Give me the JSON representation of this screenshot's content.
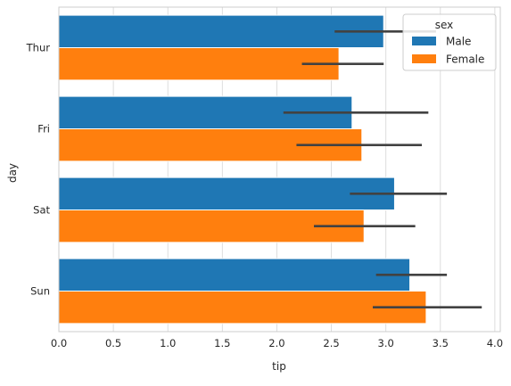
{
  "chart_data": {
    "type": "bar",
    "orientation": "horizontal",
    "categories": [
      "Thur",
      "Fri",
      "Sat",
      "Sun"
    ],
    "series": [
      {
        "name": "Male",
        "color": "#1f77b4",
        "values": [
          2.98,
          2.69,
          3.08,
          3.22
        ],
        "ci_low": [
          2.53,
          2.06,
          2.67,
          2.91
        ],
        "ci_high": [
          3.46,
          3.39,
          3.56,
          3.56
        ]
      },
      {
        "name": "Female",
        "color": "#ff7f0e",
        "values": [
          2.57,
          2.78,
          2.8,
          3.37
        ],
        "ci_low": [
          2.23,
          2.18,
          2.34,
          2.88
        ],
        "ci_high": [
          2.98,
          3.33,
          3.27,
          3.88
        ]
      }
    ],
    "xlabel": "tip",
    "ylabel": "day",
    "xlim": [
      0,
      4.05
    ],
    "xticks": [
      0.0,
      0.5,
      1.0,
      1.5,
      2.0,
      2.5,
      3.0,
      3.5,
      4.0
    ],
    "xtick_labels": [
      "0.0",
      "0.5",
      "1.0",
      "1.5",
      "2.0",
      "2.5",
      "3.0",
      "3.5",
      "4.0"
    ],
    "grid": "vertical",
    "legend": {
      "title": "sex",
      "placement": "top-right",
      "entries": [
        "Male",
        "Female"
      ]
    }
  },
  "colors": {
    "errorbar": "#424242",
    "grid": "#dddddd",
    "axes": "#cccccc",
    "text": "#262626"
  }
}
